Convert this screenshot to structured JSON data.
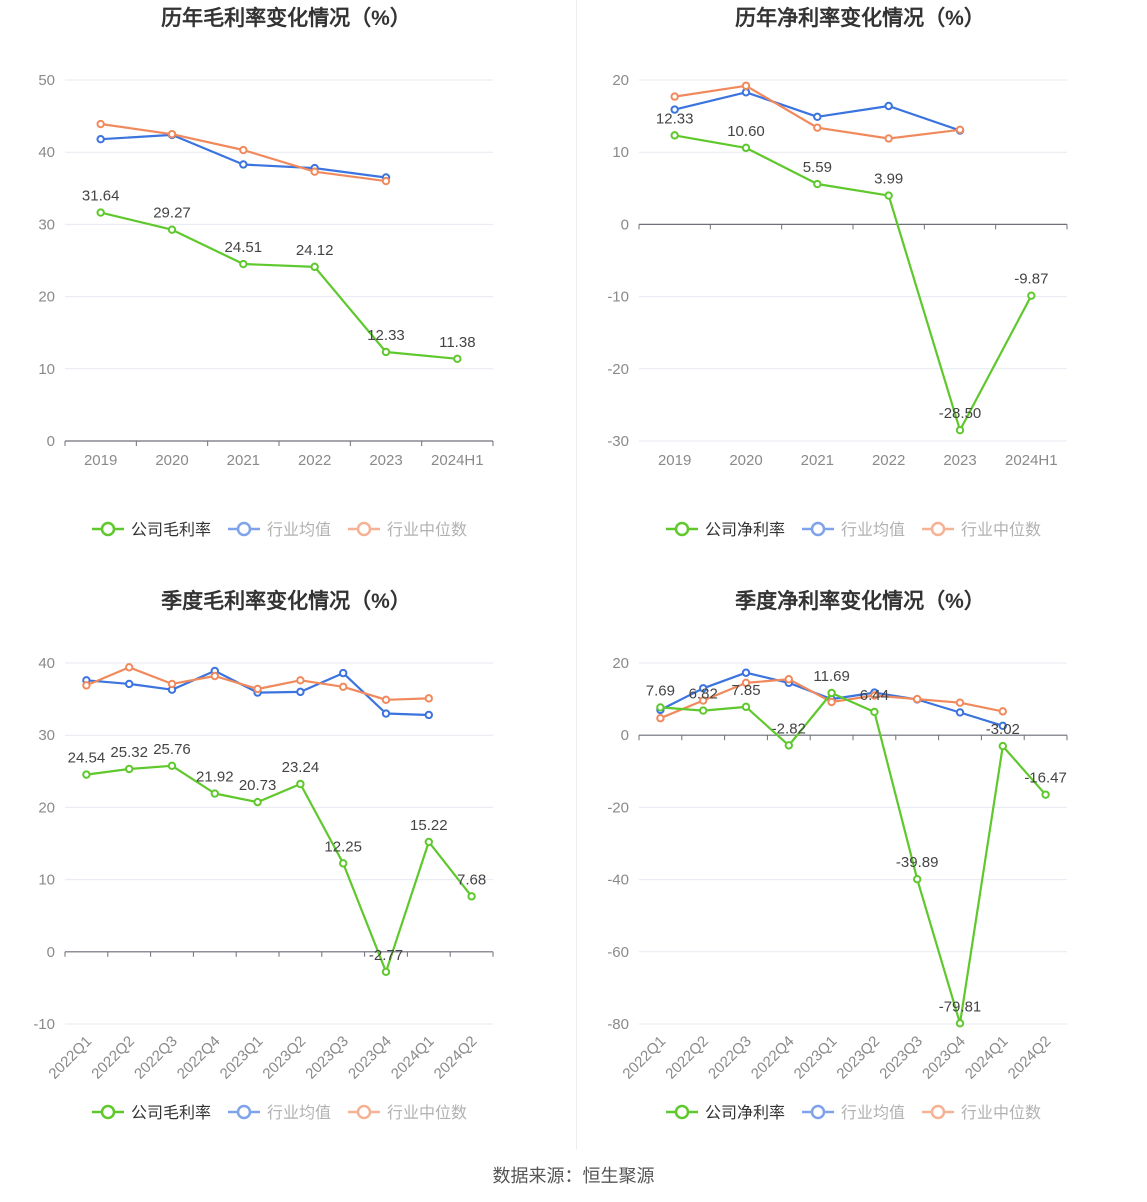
{
  "colors": {
    "company": "#5ec82c",
    "avg": "#3b73df",
    "median": "#f08a5d",
    "axis_text": "#8a8a8a",
    "title": "#333333"
  },
  "legend": {
    "industry_avg": "行业均值",
    "industry_median": "行业中位数"
  },
  "source": "数据来源：恒生聚源",
  "chart_data": [
    {
      "type": "line",
      "title": "历年毛利率变化情况（%）",
      "x": [
        "2019",
        "2020",
        "2021",
        "2022",
        "2023",
        "2024H1"
      ],
      "ylim": [
        0,
        50
      ],
      "yticks": [
        0,
        10,
        20,
        30,
        40,
        50
      ],
      "grid": true,
      "legend_position": "bottom",
      "xlabel_rotate": false,
      "series": [
        {
          "name": "公司毛利率",
          "color": "#5ec82c",
          "labels": true,
          "values": [
            31.64,
            29.27,
            24.51,
            24.12,
            12.33,
            11.38
          ]
        },
        {
          "name": "行业均值",
          "color": "#3b73df",
          "labels": false,
          "values": [
            41.8,
            42.4,
            38.3,
            37.8,
            36.5,
            null
          ]
        },
        {
          "name": "行业中位数",
          "color": "#f08a5d",
          "labels": false,
          "values": [
            43.9,
            42.5,
            40.3,
            37.3,
            36.0,
            null
          ]
        }
      ]
    },
    {
      "type": "line",
      "title": "历年净利率变化情况（%）",
      "x": [
        "2019",
        "2020",
        "2021",
        "2022",
        "2023",
        "2024H1"
      ],
      "ylim": [
        -30,
        20
      ],
      "yticks": [
        -30,
        -20,
        -10,
        0,
        10,
        20
      ],
      "grid": true,
      "legend_position": "bottom",
      "xlabel_rotate": false,
      "series": [
        {
          "name": "公司净利率",
          "color": "#5ec82c",
          "labels": true,
          "values": [
            12.33,
            10.6,
            5.59,
            3.99,
            -28.5,
            -9.87
          ]
        },
        {
          "name": "行业均值",
          "color": "#3b73df",
          "labels": false,
          "values": [
            15.9,
            18.3,
            14.9,
            16.4,
            13.0,
            null
          ]
        },
        {
          "name": "行业中位数",
          "color": "#f08a5d",
          "labels": false,
          "values": [
            17.7,
            19.2,
            13.4,
            11.9,
            13.1,
            null
          ]
        }
      ]
    },
    {
      "type": "line",
      "title": "季度毛利率变化情况（%）",
      "x": [
        "2022Q1",
        "2022Q2",
        "2022Q3",
        "2022Q4",
        "2023Q1",
        "2023Q2",
        "2023Q3",
        "2023Q4",
        "2024Q1",
        "2024Q2"
      ],
      "ylim": [
        -10,
        40
      ],
      "yticks": [
        -10,
        0,
        10,
        20,
        30,
        40
      ],
      "grid": true,
      "legend_position": "bottom",
      "xlabel_rotate": true,
      "series": [
        {
          "name": "公司毛利率",
          "color": "#5ec82c",
          "labels": true,
          "values": [
            24.54,
            25.32,
            25.76,
            21.92,
            20.73,
            23.24,
            12.25,
            -2.77,
            15.22,
            7.68
          ]
        },
        {
          "name": "行业均值",
          "color": "#3b73df",
          "labels": false,
          "values": [
            37.6,
            37.1,
            36.3,
            38.9,
            35.9,
            36.0,
            38.6,
            33.0,
            32.8,
            null
          ]
        },
        {
          "name": "行业中位数",
          "color": "#f08a5d",
          "labels": false,
          "values": [
            36.9,
            39.4,
            37.1,
            38.2,
            36.4,
            37.6,
            36.7,
            34.9,
            35.1,
            null
          ]
        }
      ]
    },
    {
      "type": "line",
      "title": "季度净利率变化情况（%）",
      "x": [
        "2022Q1",
        "2022Q2",
        "2022Q3",
        "2022Q4",
        "2023Q1",
        "2023Q2",
        "2023Q3",
        "2023Q4",
        "2024Q1",
        "2024Q2"
      ],
      "ylim": [
        -80,
        20
      ],
      "yticks": [
        -80,
        -60,
        -40,
        -20,
        0,
        20
      ],
      "grid": true,
      "legend_position": "bottom",
      "xlabel_rotate": true,
      "series": [
        {
          "name": "公司净利率",
          "color": "#5ec82c",
          "labels": true,
          "values": [
            7.69,
            6.82,
            7.85,
            -2.82,
            11.69,
            6.44,
            -39.89,
            -79.81,
            -3.02,
            -16.47
          ]
        },
        {
          "name": "行业均值",
          "color": "#3b73df",
          "labels": false,
          "values": [
            7.0,
            13.0,
            17.3,
            14.5,
            10.0,
            11.8,
            9.9,
            6.3,
            2.6,
            null
          ]
        },
        {
          "name": "行业中位数",
          "color": "#f08a5d",
          "labels": false,
          "values": [
            4.7,
            9.6,
            14.5,
            15.5,
            9.2,
            11.0,
            10.0,
            9.0,
            6.6,
            null
          ]
        }
      ]
    }
  ]
}
